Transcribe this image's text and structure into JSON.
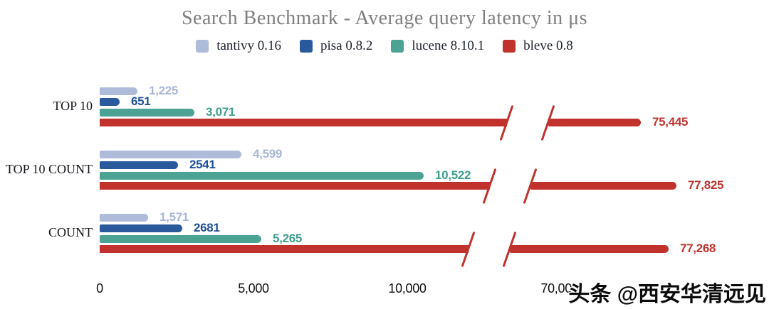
{
  "title": "Search Benchmark - Average query latency in μs",
  "watermark": "头条 @西安华清远见",
  "chart_data": {
    "type": "bar",
    "orientation": "horizontal",
    "title": "Search Benchmark - Average query latency in μs",
    "unit": "μs",
    "legend_position": "top",
    "grid": false,
    "axis_break": {
      "present": true,
      "between": [
        10000,
        70000
      ]
    },
    "x_axis": {
      "ticks": [
        {
          "label": "0",
          "value": 0
        },
        {
          "label": "5,000",
          "value": 5000
        },
        {
          "label": "10,000",
          "value": 10000
        },
        {
          "label": "70,000",
          "value": 70000
        }
      ]
    },
    "categories": [
      "TOP 10",
      "TOP 10 COUNT",
      "COUNT"
    ],
    "series": [
      {
        "name": "tantivy 0.16",
        "color": "#afbcd9",
        "label_color": "#a8b6d5",
        "values": [
          1225,
          4599,
          1571
        ],
        "value_labels": [
          "1,225",
          "4,599",
          "1,571"
        ]
      },
      {
        "name": "pisa 0.8.2",
        "color": "#2a5a9c",
        "label_color": "#1f5096",
        "values": [
          651,
          2541,
          2681
        ],
        "value_labels": [
          "651",
          "2541",
          "2681"
        ]
      },
      {
        "name": "lucene 8.10.1",
        "color": "#4ca293",
        "label_color": "#3f9e8e",
        "values": [
          3071,
          10522,
          5265
        ],
        "value_labels": [
          "3,071",
          "10,522",
          "5,265"
        ]
      },
      {
        "name": "bleve 0.8",
        "color": "#c2322d",
        "label_color": "#c1332e",
        "values": [
          75445,
          77825,
          77268
        ],
        "value_labels": [
          "75,445",
          "77,825",
          "77,268"
        ]
      }
    ]
  }
}
